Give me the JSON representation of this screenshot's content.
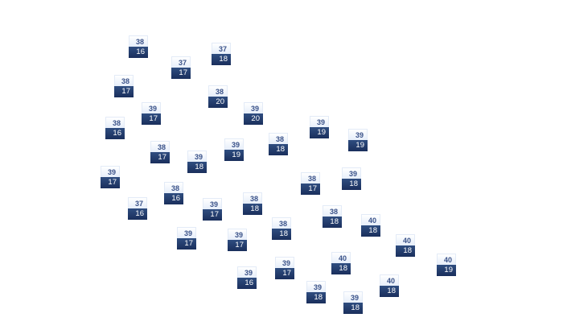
{
  "colors": {
    "high_text": "#3a5289",
    "low_background": "#1f3766",
    "high_background": "#eef3fb"
  },
  "markers": [
    {
      "high": "38",
      "low": "16"
    },
    {
      "high": "37",
      "low": "18"
    },
    {
      "high": "37",
      "low": "17"
    },
    {
      "high": "38",
      "low": "17"
    },
    {
      "high": "38",
      "low": "20"
    },
    {
      "high": "39",
      "low": "17"
    },
    {
      "high": "39",
      "low": "20"
    },
    {
      "high": "38",
      "low": "16"
    },
    {
      "high": "39",
      "low": "19"
    },
    {
      "high": "38",
      "low": "18"
    },
    {
      "high": "39",
      "low": "19"
    },
    {
      "high": "38",
      "low": "17"
    },
    {
      "high": "39",
      "low": "19"
    },
    {
      "high": "39",
      "low": "18"
    },
    {
      "high": "39",
      "low": "17"
    },
    {
      "high": "38",
      "low": "17"
    },
    {
      "high": "39",
      "low": "18"
    },
    {
      "high": "38",
      "low": "16"
    },
    {
      "high": "37",
      "low": "16"
    },
    {
      "high": "39",
      "low": "17"
    },
    {
      "high": "38",
      "low": "18"
    },
    {
      "high": "38",
      "low": "18"
    },
    {
      "high": "40",
      "low": "18"
    },
    {
      "high": "38",
      "low": "18"
    },
    {
      "high": "39",
      "low": "17"
    },
    {
      "high": "39",
      "low": "17"
    },
    {
      "high": "40",
      "low": "18"
    },
    {
      "high": "40",
      "low": "19"
    },
    {
      "high": "40",
      "low": "18"
    },
    {
      "high": "39",
      "low": "17"
    },
    {
      "high": "39",
      "low": "16"
    },
    {
      "high": "40",
      "low": "18"
    },
    {
      "high": "39",
      "low": "18"
    },
    {
      "high": "39",
      "low": "18"
    }
  ]
}
